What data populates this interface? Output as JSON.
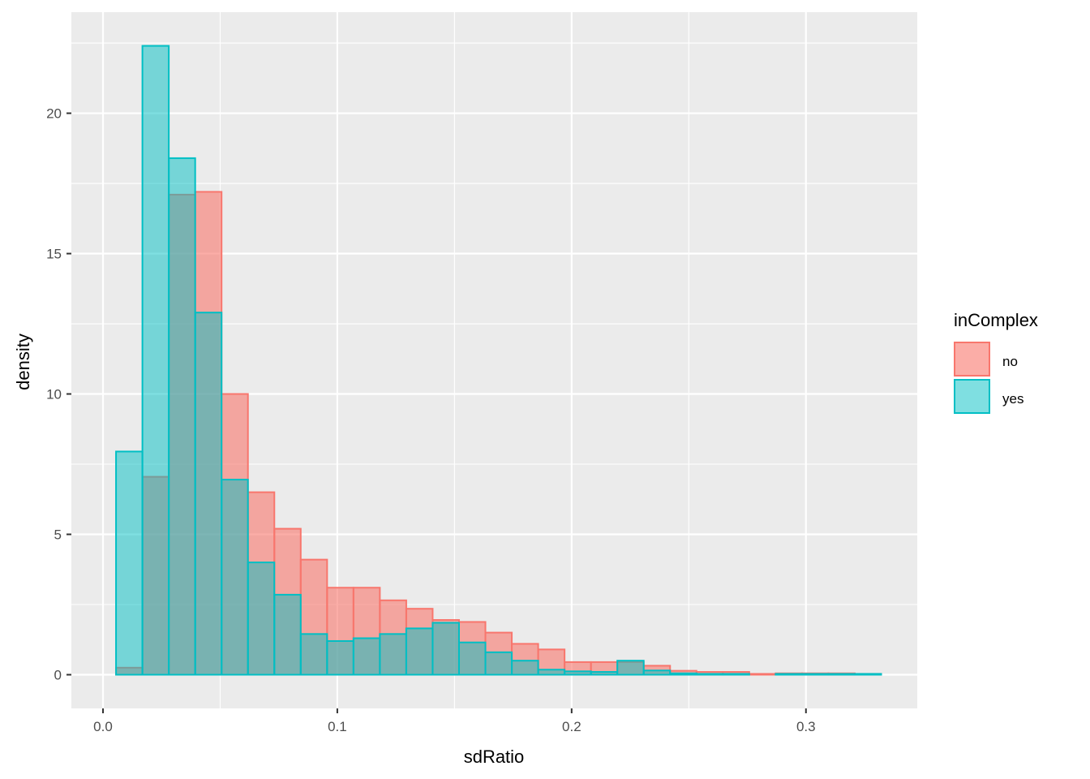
{
  "chart_data": {
    "type": "bar",
    "subtype": "histogram-density-overlay",
    "xlabel": "sdRatio",
    "ylabel": "density",
    "xlim": [
      -0.0135,
      0.3475
    ],
    "ylim": [
      -1.2,
      23.6
    ],
    "x_ticks": [
      0.0,
      0.1,
      0.2,
      0.3
    ],
    "x_tick_labels": [
      "0.0",
      "0.1",
      "0.2",
      "0.3"
    ],
    "y_ticks": [
      0,
      5,
      10,
      15,
      20
    ],
    "y_tick_labels": [
      "0",
      "5",
      "10",
      "15",
      "20"
    ],
    "grid": true,
    "bin_start": -0.0057,
    "bin_width": 0.01126,
    "series": [
      {
        "name": "no",
        "color": "#F8766D",
        "values": [
          0,
          0.25,
          7.05,
          17.1,
          17.2,
          10.0,
          6.5,
          5.2,
          4.1,
          3.1,
          3.1,
          2.65,
          2.35,
          1.95,
          1.88,
          1.5,
          1.1,
          0.9,
          0.45,
          0.45,
          0.45,
          0.32,
          0.14,
          0.1,
          0.1,
          0.03,
          0.05,
          0.05,
          0.05,
          0.03
        ]
      },
      {
        "name": "yes",
        "color": "#00BFC4",
        "values": [
          0,
          7.95,
          22.4,
          18.4,
          12.9,
          6.95,
          4.0,
          2.85,
          1.45,
          1.2,
          1.3,
          1.45,
          1.65,
          1.85,
          1.15,
          0.8,
          0.5,
          0.18,
          0.12,
          0.1,
          0.5,
          0.15,
          0.05,
          0.03,
          0.03,
          0.0,
          0.03,
          0.03,
          0.03,
          0.03
        ]
      }
    ],
    "legend": {
      "title": "inComplex",
      "placement": "right",
      "entries": [
        "no",
        "yes"
      ]
    }
  }
}
